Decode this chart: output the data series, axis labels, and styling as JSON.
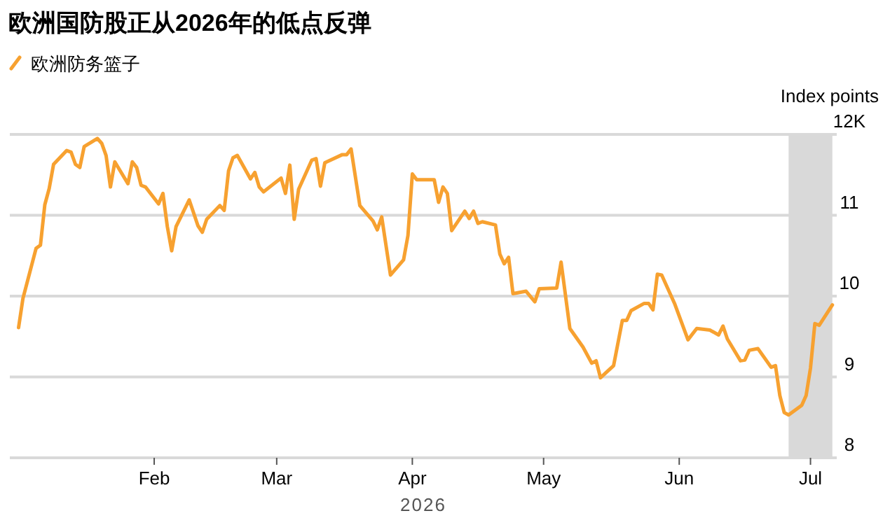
{
  "chart_data": {
    "type": "line",
    "title": "欧洲国防股正从2026年的低点反弹",
    "xlabel": "2026",
    "ylabel": "Index points",
    "legend": "top left",
    "grid": "y",
    "xlim": [
      "2025-12-30",
      "2026-07-07"
    ],
    "xticks": [
      {
        "value": "2026-02-01",
        "label": "Feb"
      },
      {
        "value": "2026-03-01",
        "label": "Mar"
      },
      {
        "value": "2026-04-01",
        "label": "Apr"
      },
      {
        "value": "2026-05-01",
        "label": "May"
      },
      {
        "value": "2026-06-01",
        "label": "Jun"
      },
      {
        "value": "2026-07-01",
        "label": "Jul"
      }
    ],
    "ylim": [
      8,
      12
    ],
    "yticks": [
      8,
      9,
      10,
      11,
      {
        "value": 12,
        "label": "12K"
      }
    ],
    "bands": [
      {
        "axis": "x",
        "from": "2026-06-26",
        "to": "2026-07-06",
        "color": "#d9d9d9"
      }
    ],
    "series": [
      {
        "name": "欧洲防务篮子",
        "color": "#f7a130",
        "x": [
          "2026-01-01",
          "2026-01-02",
          "2026-01-05",
          "2026-01-06",
          "2026-01-07",
          "2026-01-08",
          "2026-01-09",
          "2026-01-12",
          "2026-01-13",
          "2026-01-14",
          "2026-01-15",
          "2026-01-16",
          "2026-01-19",
          "2026-01-20",
          "2026-01-21",
          "2026-01-22",
          "2026-01-23",
          "2026-01-26",
          "2026-01-27",
          "2026-01-28",
          "2026-01-29",
          "2026-01-30",
          "2026-02-02",
          "2026-02-03",
          "2026-02-04",
          "2026-02-05",
          "2026-02-06",
          "2026-02-09",
          "2026-02-11",
          "2026-02-12",
          "2026-02-13",
          "2026-02-16",
          "2026-02-17",
          "2026-02-18",
          "2026-02-19",
          "2026-02-20",
          "2026-02-23",
          "2026-02-24",
          "2026-02-25",
          "2026-02-26",
          "2026-03-02",
          "2026-03-03",
          "2026-03-04",
          "2026-03-05",
          "2026-03-06",
          "2026-03-09",
          "2026-03-10",
          "2026-03-11",
          "2026-03-12",
          "2026-03-16",
          "2026-03-17",
          "2026-03-18",
          "2026-03-20",
          "2026-03-23",
          "2026-03-24",
          "2026-03-25",
          "2026-03-27",
          "2026-03-30",
          "2026-03-31",
          "2026-04-01",
          "2026-04-02",
          "2026-04-06",
          "2026-04-07",
          "2026-04-08",
          "2026-04-09",
          "2026-04-10",
          "2026-04-13",
          "2026-04-14",
          "2026-04-15",
          "2026-04-16",
          "2026-04-17",
          "2026-04-20",
          "2026-04-21",
          "2026-04-22",
          "2026-04-23",
          "2026-04-24",
          "2026-04-27",
          "2026-04-29",
          "2026-04-30",
          "2026-05-04",
          "2026-05-05",
          "2026-05-07",
          "2026-05-10",
          "2026-05-12",
          "2026-05-13",
          "2026-05-14",
          "2026-05-17",
          "2026-05-19",
          "2026-05-20",
          "2026-05-21",
          "2026-05-24",
          "2026-05-25",
          "2026-05-26",
          "2026-05-27",
          "2026-05-28",
          "2026-05-31",
          "2026-06-03",
          "2026-06-05",
          "2026-06-08",
          "2026-06-10",
          "2026-06-11",
          "2026-06-12",
          "2026-06-15",
          "2026-06-16",
          "2026-06-17",
          "2026-06-19",
          "2026-06-22",
          "2026-06-23",
          "2026-06-24",
          "2026-06-25",
          "2026-06-26",
          "2026-06-29",
          "2026-06-30",
          "2026-07-01",
          "2026-07-02",
          "2026-07-03",
          "2026-07-06"
        ],
        "values": [
          9.61,
          9.97,
          10.59,
          10.63,
          11.13,
          11.33,
          11.63,
          11.8,
          11.78,
          11.63,
          11.59,
          11.85,
          11.95,
          11.89,
          11.74,
          11.35,
          11.66,
          11.39,
          11.66,
          11.59,
          11.37,
          11.35,
          11.14,
          11.27,
          10.86,
          10.56,
          10.86,
          11.19,
          10.87,
          10.79,
          10.95,
          11.12,
          11.06,
          11.55,
          11.71,
          11.74,
          11.45,
          11.53,
          11.35,
          11.29,
          11.46,
          11.27,
          11.62,
          10.95,
          11.32,
          11.68,
          11.7,
          11.36,
          11.65,
          11.75,
          11.75,
          11.82,
          11.12,
          10.93,
          10.82,
          10.98,
          10.26,
          10.45,
          10.75,
          11.51,
          11.44,
          11.44,
          11.16,
          11.35,
          11.27,
          10.81,
          11.05,
          10.96,
          11.05,
          10.9,
          10.92,
          10.88,
          10.52,
          10.4,
          10.48,
          10.03,
          10.06,
          9.93,
          10.09,
          10.1,
          10.42,
          9.6,
          9.37,
          9.17,
          9.2,
          8.99,
          9.14,
          9.7,
          9.7,
          9.82,
          9.91,
          9.91,
          9.83,
          10.27,
          10.26,
          9.9,
          9.46,
          9.6,
          9.58,
          9.52,
          9.63,
          9.47,
          9.2,
          9.21,
          9.33,
          9.35,
          9.12,
          9.14,
          8.77,
          8.56,
          8.53,
          8.65,
          8.77,
          9.11,
          9.66,
          9.64,
          9.89
        ]
      }
    ]
  }
}
